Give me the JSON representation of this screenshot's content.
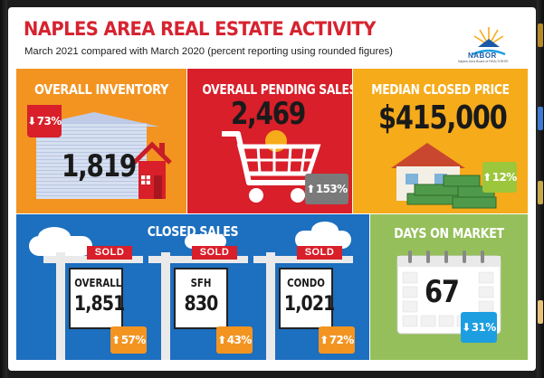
{
  "header": {
    "title": "NAPLES AREA REAL ESTATE ACTIVITY",
    "subtitle": "March 2021 compared with March 2020 (percent reporting using rounded figures)",
    "logo_text": "NABOR",
    "logo_subtext": "Naples Area Board of REALTORS®"
  },
  "overall_inventory": {
    "title": "OVERALL INVENTORY",
    "value": "1,819",
    "change": "73%",
    "direction": "down",
    "badge_color": "#d81f2a"
  },
  "overall_pending_sales": {
    "title": "OVERALL PENDING SALES",
    "value": "2,469",
    "change": "153%",
    "direction": "up",
    "badge_color": "#7a7a7a"
  },
  "median_closed_price": {
    "title": "MEDIAN CLOSED PRICE",
    "value": "$415,000",
    "change": "12%",
    "direction": "up",
    "badge_color": "#9cc63b"
  },
  "closed_sales": {
    "title": "CLOSED SALES",
    "signs": [
      {
        "sold_label": "SOLD",
        "label": "OVERALL",
        "value": "1,851",
        "change": "57%",
        "direction": "up"
      },
      {
        "sold_label": "SOLD",
        "label": "SFH",
        "value": "830",
        "change": "43%",
        "direction": "up"
      },
      {
        "sold_label": "SOLD",
        "label": "CONDO",
        "value": "1,021",
        "change": "72%",
        "direction": "up"
      }
    ],
    "badge_color": "#f39421"
  },
  "days_on_market": {
    "title": "DAYS ON MARKET",
    "value": "67",
    "change": "31%",
    "direction": "down",
    "badge_color": "#1d9ee0"
  },
  "icons": {
    "down_arrow": "⬇",
    "up_arrow": "⬆"
  },
  "colors": {
    "title_red": "#d6232f",
    "inventory_bg": "#f39421",
    "pending_bg": "#d81f2a",
    "price_bg": "#f6ab1a",
    "closed_bg": "#1d6fbf",
    "dom_bg": "#95bf5a"
  }
}
